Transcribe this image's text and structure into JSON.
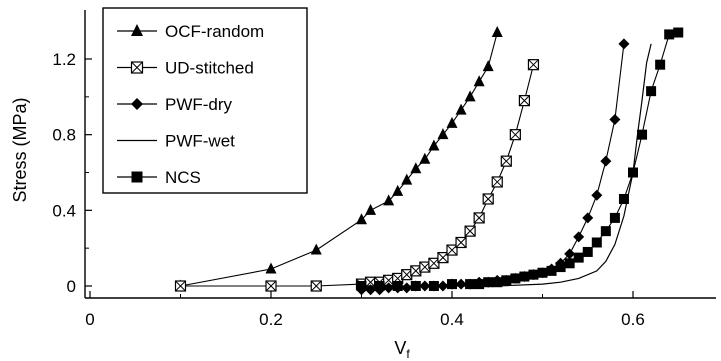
{
  "chart_data": {
    "type": "line",
    "title": "",
    "xlabel": "V",
    "xlabel_sub": "f",
    "ylabel": "Stress (MPa)",
    "xlim": [
      0,
      0.7
    ],
    "ylim": [
      -0.02,
      1.42
    ],
    "xticks": [
      0,
      0.2,
      0.4,
      0.6
    ],
    "xtick_labels": [
      "0",
      "0.2",
      "0.4",
      "0.6"
    ],
    "yticks": [
      0,
      0.4,
      0.8,
      1.2
    ],
    "ytick_labels": [
      "0",
      "0.4",
      "0.8",
      "1.2"
    ],
    "grid": false,
    "legend_position": "top-left",
    "series": [
      {
        "name": "OCF-random",
        "marker": "triangle",
        "x": [
          0.1,
          0.2,
          0.25,
          0.3,
          0.31,
          0.33,
          0.34,
          0.35,
          0.36,
          0.37,
          0.38,
          0.39,
          0.4,
          0.41,
          0.42,
          0.43,
          0.44,
          0.45
        ],
        "y": [
          0.0,
          0.09,
          0.19,
          0.35,
          0.4,
          0.45,
          0.5,
          0.56,
          0.62,
          0.67,
          0.74,
          0.8,
          0.86,
          0.93,
          1.0,
          1.08,
          1.16,
          1.34
        ]
      },
      {
        "name": "UD-stitched",
        "marker": "square-x",
        "x": [
          0.1,
          0.2,
          0.25,
          0.3,
          0.31,
          0.32,
          0.33,
          0.34,
          0.35,
          0.36,
          0.37,
          0.38,
          0.39,
          0.4,
          0.41,
          0.42,
          0.43,
          0.44,
          0.45,
          0.46,
          0.47,
          0.48,
          0.49
        ],
        "y": [
          0.0,
          0.0,
          0.0,
          0.01,
          0.02,
          0.02,
          0.03,
          0.04,
          0.06,
          0.08,
          0.1,
          0.12,
          0.15,
          0.19,
          0.23,
          0.29,
          0.36,
          0.46,
          0.55,
          0.66,
          0.8,
          0.98,
          1.17
        ]
      },
      {
        "name": "PWF-dry",
        "marker": "diamond",
        "x": [
          0.3,
          0.31,
          0.32,
          0.33,
          0.34,
          0.35,
          0.36,
          0.37,
          0.38,
          0.39,
          0.4,
          0.41,
          0.42,
          0.43,
          0.44,
          0.45,
          0.46,
          0.47,
          0.48,
          0.49,
          0.5,
          0.51,
          0.52,
          0.53,
          0.54,
          0.55,
          0.56,
          0.57,
          0.58,
          0.59
        ],
        "y": [
          -0.02,
          -0.02,
          -0.02,
          -0.01,
          -0.01,
          -0.01,
          0.0,
          0.0,
          0.0,
          0.0,
          0.01,
          0.01,
          0.01,
          0.02,
          0.02,
          0.03,
          0.03,
          0.04,
          0.05,
          0.06,
          0.07,
          0.09,
          0.12,
          0.17,
          0.26,
          0.36,
          0.48,
          0.66,
          0.88,
          1.28
        ]
      },
      {
        "name": "PWF-wet",
        "marker": "none",
        "x": [
          0.3,
          0.4,
          0.45,
          0.5,
          0.52,
          0.54,
          0.56,
          0.57,
          0.58,
          0.59,
          0.6,
          0.605,
          0.61,
          0.615,
          0.62
        ],
        "y": [
          0.0,
          0.0,
          0.0,
          0.01,
          0.02,
          0.04,
          0.08,
          0.13,
          0.22,
          0.37,
          0.6,
          0.8,
          0.98,
          1.18,
          1.28
        ]
      },
      {
        "name": "NCS",
        "marker": "square",
        "x": [
          0.3,
          0.32,
          0.34,
          0.36,
          0.38,
          0.4,
          0.42,
          0.43,
          0.44,
          0.45,
          0.46,
          0.47,
          0.48,
          0.49,
          0.5,
          0.51,
          0.52,
          0.53,
          0.54,
          0.55,
          0.56,
          0.57,
          0.58,
          0.59,
          0.6,
          0.61,
          0.62,
          0.63,
          0.64,
          0.65
        ],
        "y": [
          0.0,
          0.0,
          0.0,
          0.0,
          0.0,
          0.01,
          0.01,
          0.01,
          0.02,
          0.02,
          0.03,
          0.04,
          0.05,
          0.06,
          0.07,
          0.08,
          0.1,
          0.12,
          0.15,
          0.18,
          0.23,
          0.29,
          0.36,
          0.46,
          0.6,
          0.8,
          1.03,
          1.17,
          1.33,
          1.34
        ]
      }
    ]
  }
}
